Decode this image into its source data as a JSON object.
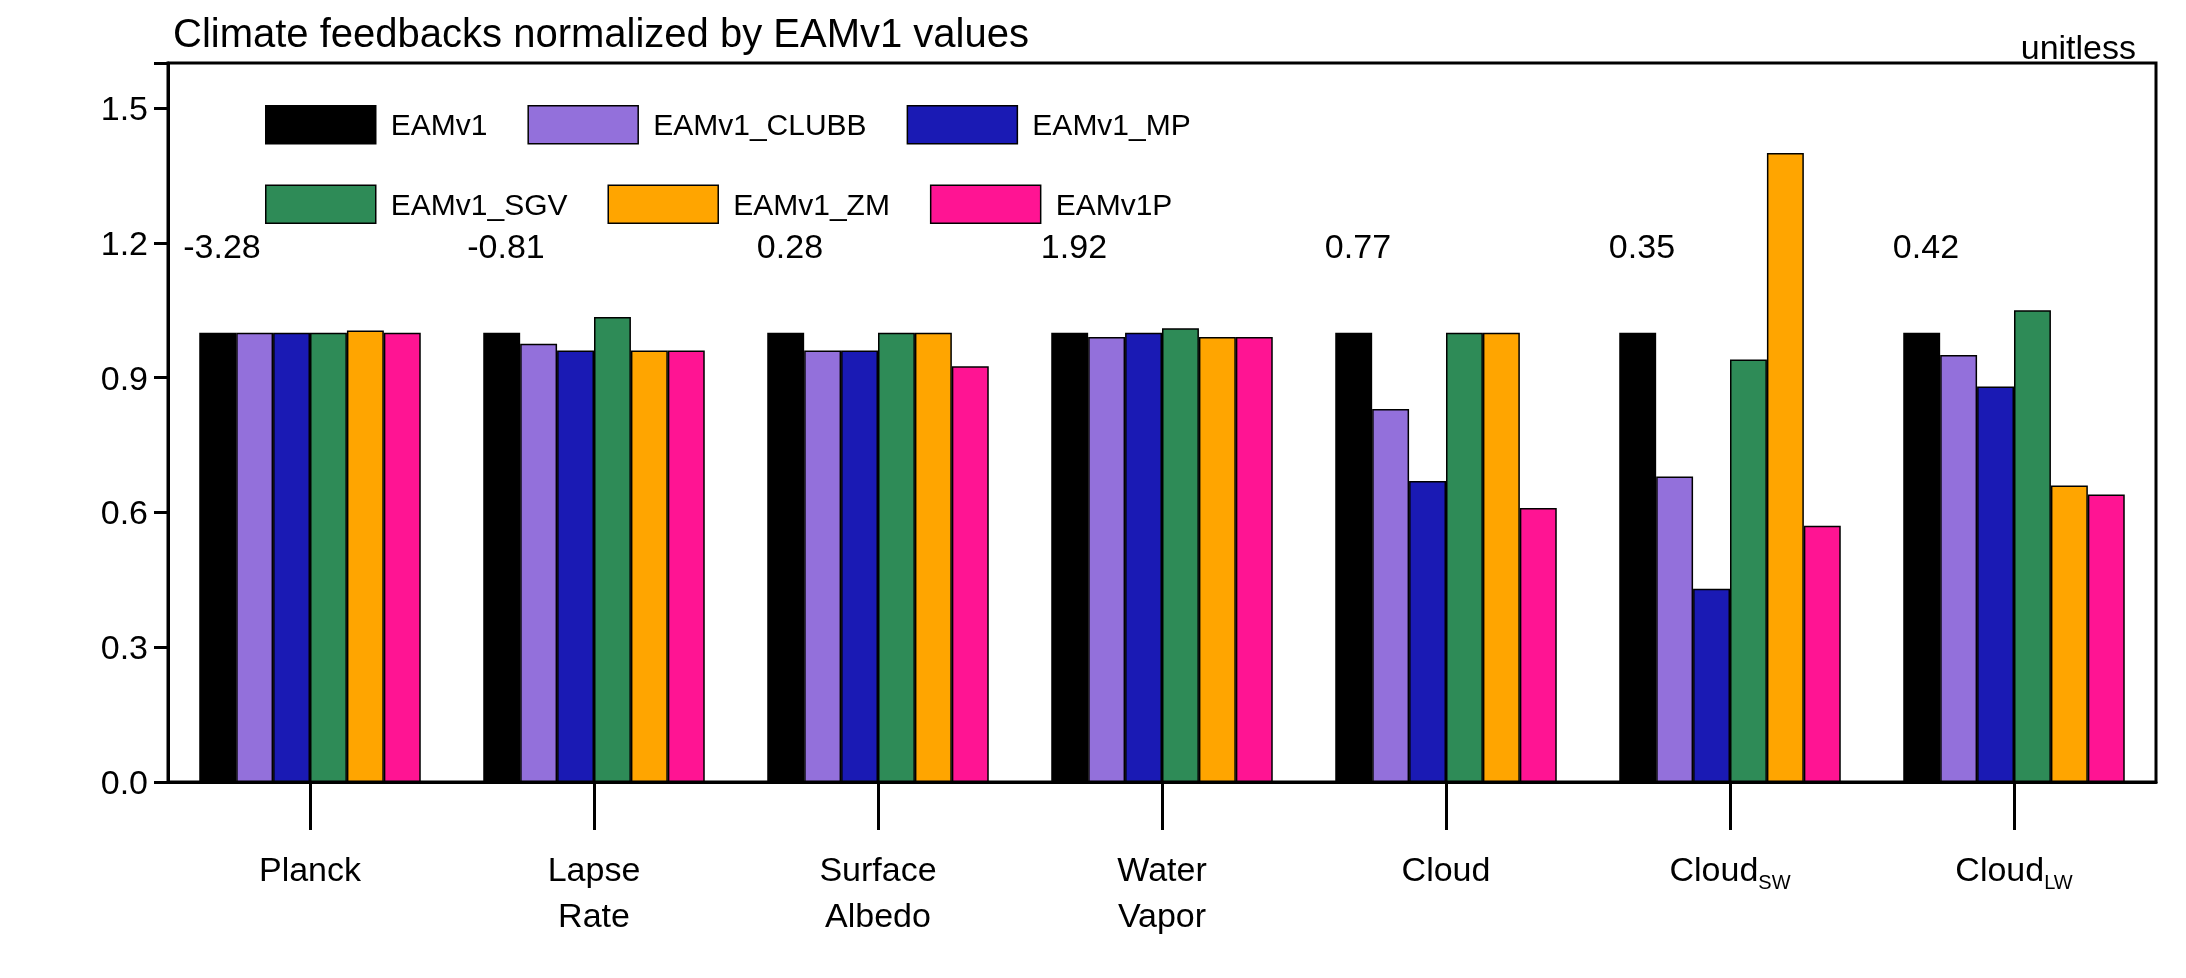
{
  "chart_data": {
    "type": "bar",
    "title": "Climate feedbacks normalized by EAMv1 values",
    "categories": [
      "Planck",
      "Lapse Rate",
      "Surface Albedo",
      "Water Vapor",
      "Cloud",
      "Cloud$_{SW}$",
      "Cloud$_{LW}$"
    ],
    "series": [
      {
        "name": "EAMv1",
        "color": "#000000",
        "values": [
          1.0,
          1.0,
          1.0,
          1.0,
          1.0,
          1.0,
          1.0
        ]
      },
      {
        "name": "EAMv1_CLUBB",
        "color": "#9370db",
        "values": [
          1.0,
          0.975,
          0.96,
          0.99,
          0.83,
          0.68,
          0.95
        ]
      },
      {
        "name": "EAMv1_MP",
        "color": "#1a1ab4",
        "values": [
          1.0,
          0.96,
          0.96,
          1.0,
          0.67,
          0.43,
          0.88
        ]
      },
      {
        "name": "EAMv1_SGV",
        "color": "#2e8b57",
        "values": [
          1.0,
          1.035,
          1.0,
          1.01,
          1.0,
          0.94,
          1.05
        ]
      },
      {
        "name": "EAMv1_ZM",
        "color": "#ffa500",
        "values": [
          1.005,
          0.96,
          1.0,
          0.99,
          1.0,
          1.4,
          0.66
        ]
      },
      {
        "name": "EAMv1P",
        "color": "#ff1493",
        "values": [
          1.0,
          0.96,
          0.925,
          0.99,
          0.61,
          0.57,
          0.64
        ]
      }
    ],
    "ylim": [
      0,
      1.6
    ],
    "yticks": [
      {
        "value": 0,
        "label": "0.0"
      },
      {
        "value": 0.3,
        "label": "0.3"
      },
      {
        "value": 0.6,
        "label": "0.6"
      },
      {
        "value": 0.9,
        "label": "0.9"
      },
      {
        "value": 1.2,
        "label": "1.2"
      },
      1.5
    ],
    "legend": "top left",
    "annotations": [
      "-3.28",
      "-0.81",
      "0.28",
      "1.92",
      "0.77",
      "0.35",
      "0.42",
      "unitless"
    ]
  }
}
